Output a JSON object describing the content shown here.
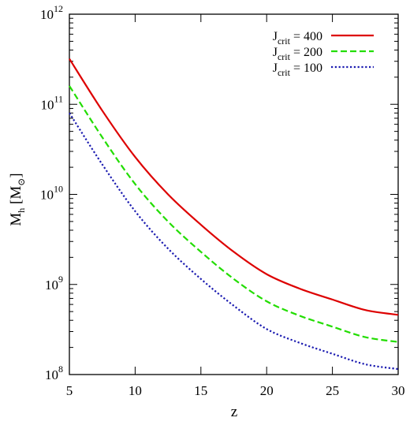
{
  "chart_data": {
    "type": "line",
    "xlabel": "z",
    "ylabel": {
      "main": "M",
      "sub": "h",
      "unit": "[M",
      "unit_sub": "⊙",
      "unit_close": "]"
    },
    "xlim": [
      5,
      30
    ],
    "ylim": [
      100000000.0,
      1000000000000.0
    ],
    "yscale": "log",
    "grid": false,
    "legend_placement": "top-right",
    "x_ticks": [
      5,
      10,
      15,
      20,
      25,
      30
    ],
    "x_tick_labels": [
      "5",
      "10",
      "15",
      "20",
      "25",
      "30"
    ],
    "y_ticks": [
      {
        "value": 100000000.0,
        "base": "10",
        "exp": "8"
      },
      {
        "value": 1000000000.0,
        "base": "10",
        "exp": "9"
      },
      {
        "value": 10000000000.0,
        "base": "10",
        "exp": "10"
      },
      {
        "value": 100000000000.0,
        "base": "10",
        "exp": "11"
      },
      {
        "value": 1000000000000.0,
        "base": "10",
        "exp": "12"
      }
    ],
    "x": [
      5,
      7.5,
      10,
      12.5,
      15,
      17.5,
      20,
      22.5,
      25,
      27.5,
      30
    ],
    "series": [
      {
        "name": {
          "pre": "J",
          "sub": "crit",
          "post": " = 400"
        },
        "color": "#dd0000",
        "style": "solid",
        "values": [
          320000000000.0,
          85000000000.0,
          26000000000.0,
          10000000000.0,
          4600000000.0,
          2300000000.0,
          1300000000.0,
          900000000.0,
          680000000.0,
          520000000.0,
          460000000.0
        ]
      },
      {
        "name": {
          "pre": "J",
          "sub": "crit",
          "post": " = 200"
        },
        "color": "#22dd00",
        "style": "dashed",
        "values": [
          160000000000.0,
          43000000000.0,
          13000000000.0,
          5000000000.0,
          2300000000.0,
          1150000000.0,
          650000000.0,
          450000000.0,
          340000000.0,
          260000000.0,
          230000000.0
        ]
      },
      {
        "name": {
          "pre": "J",
          "sub": "crit",
          "post": " = 100"
        },
        "color": "#1a1ab0",
        "style": "dotted",
        "values": [
          80000000000.0,
          21500000000.0,
          6500000000.0,
          2500000000.0,
          1150000000.0,
          580000000.0,
          320000000.0,
          225000000.0,
          170000000.0,
          130000000.0,
          115000000.0
        ]
      }
    ]
  }
}
